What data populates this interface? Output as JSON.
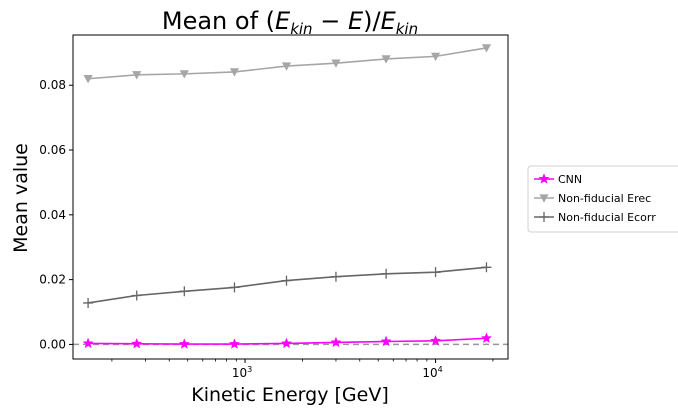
{
  "chart_data": {
    "type": "line",
    "title_parts": [
      "Mean of (",
      "E",
      "kin",
      " − ",
      "E",
      ")/",
      "E",
      "kin"
    ],
    "xlabel": "Kinetic Energy [GeV]",
    "ylabel": "Mean value",
    "xscale": "log",
    "xlim": [
      125,
      24000
    ],
    "ylim": [
      -0.0045,
      0.0955
    ],
    "xticks": [
      {
        "value": 1000,
        "base": "10",
        "exp": "3"
      },
      {
        "value": 10000,
        "base": "10",
        "exp": "4"
      }
    ],
    "yticks": [
      {
        "value": 0.0,
        "label": "0.00"
      },
      {
        "value": 0.02,
        "label": "0.02"
      },
      {
        "value": 0.04,
        "label": "0.04"
      },
      {
        "value": 0.06,
        "label": "0.06"
      },
      {
        "value": 0.08,
        "label": "0.08"
      }
    ],
    "grid": false,
    "legend_position": "outside-right",
    "reference_line": {
      "y": 0.0,
      "color": "#999999",
      "style": "dashed"
    },
    "x": [
      150,
      270,
      480,
      880,
      1650,
      3000,
      5500,
      10000,
      18500
    ],
    "series": [
      {
        "name": "CNN",
        "color": "#ff00ff",
        "marker": "star",
        "values": [
          0.0003,
          0.0002,
          0.0001,
          0.0001,
          0.0003,
          0.0006,
          0.0009,
          0.0011,
          0.0019
        ]
      },
      {
        "name": "Non-fiducial Erec",
        "color": "#a6a6a6",
        "marker": "triangle-down",
        "values": [
          0.082,
          0.0832,
          0.0835,
          0.0841,
          0.0859,
          0.0868,
          0.0881,
          0.0889,
          0.0915
        ]
      },
      {
        "name": "Non-fiducial Ecorr",
        "color": "#666666",
        "marker": "plus",
        "values": [
          0.0128,
          0.0151,
          0.0164,
          0.0176,
          0.0197,
          0.0209,
          0.0218,
          0.0223,
          0.0238
        ]
      }
    ]
  }
}
